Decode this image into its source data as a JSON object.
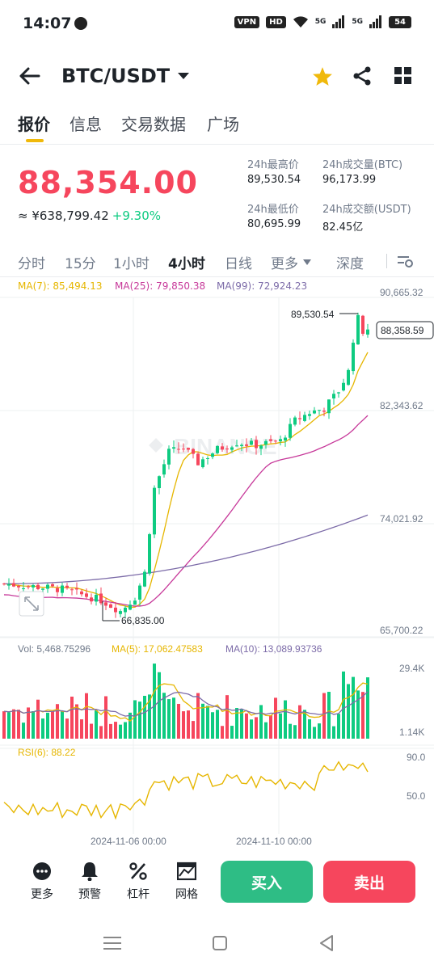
{
  "status_bar": {
    "time": "14:07",
    "badges": [
      "VPN",
      "HD",
      "5G",
      "5G"
    ],
    "battery": "54"
  },
  "header": {
    "pair": "BTC/USDT",
    "icons": [
      "back-arrow-icon",
      "chevron-down-icon",
      "star-icon",
      "share-icon",
      "grid-icon"
    ],
    "star_color": "#f0b90b"
  },
  "tabs": [
    "报价",
    "信息",
    "交易数据",
    "广场"
  ],
  "price": {
    "last": "88,354.00",
    "cny": "≈ ¥638,799.42",
    "change": "+9.30%",
    "colors": {
      "down": "#f6465d",
      "up": "#0ecb81"
    }
  },
  "stats": [
    {
      "label": "24h最高价",
      "value": "89,530.54"
    },
    {
      "label": "24h成交量(BTC)",
      "value": "96,173.99"
    },
    {
      "label": "24h最低价",
      "value": "80,695.99"
    },
    {
      "label": "24h成交额(USDT)",
      "value": "82.45亿"
    }
  ],
  "intervals": [
    "分时",
    "15分",
    "1小时",
    "4小时",
    "日线",
    "更多",
    "深度"
  ],
  "active_interval": "4小时",
  "ma_labels": [
    "MA(7): 85,494.13",
    "MA(25): 79,850.38",
    "MA(99): 72,924.23"
  ],
  "ma_colors": [
    "#e6b600",
    "#c7399a",
    "#7c6ba8"
  ],
  "price_axis": [
    "90,665.32",
    "82,343.62",
    "74,021.92",
    "65,700.22"
  ],
  "current_price_tag": "88,358.59",
  "high_marker": "89,530.54",
  "low_marker": "66,835.00",
  "watermark": "BINANCE",
  "volume": {
    "labels": [
      "Vol: 5,468.75296",
      "MA(5): 17,062.47583",
      "MA(10): 13,089.93736"
    ],
    "axis": [
      "29.4K",
      "1.14K"
    ]
  },
  "rsi": {
    "label": "RSI(6): 88.22",
    "axis": [
      "90.0",
      "50.0"
    ]
  },
  "time_axis": [
    "2024-11-06 00:00",
    "2024-11-10 00:00"
  ],
  "bottom_bar": {
    "items": [
      {
        "label": "更多",
        "icon": "more-dots-icon"
      },
      {
        "label": "预警",
        "icon": "bell-icon"
      },
      {
        "label": "杠杆",
        "icon": "percent-icon"
      },
      {
        "label": "网格",
        "icon": "grid-trading-icon"
      }
    ],
    "buy": "买入",
    "sell": "卖出"
  },
  "nav": [
    "menu-icon",
    "home-icon",
    "back-icon"
  ]
}
